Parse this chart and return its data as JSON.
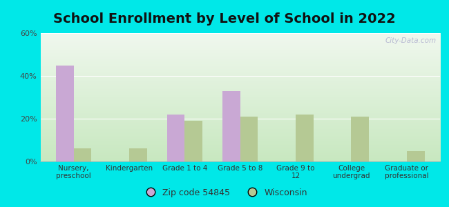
{
  "title": "School Enrollment by Level of School in 2022",
  "categories": [
    "Nursery,\npreschool",
    "Kindergarten",
    "Grade 1 to 4",
    "Grade 5 to 8",
    "Grade 9 to\n12",
    "College\nundergrad",
    "Graduate or\nprofessional"
  ],
  "zip_values": [
    45,
    0,
    22,
    33,
    0,
    0,
    0
  ],
  "wi_values": [
    6,
    6,
    19,
    21,
    22,
    21,
    5
  ],
  "zip_color": "#c9a8d4",
  "wi_color": "#b5c994",
  "background_outer": "#00e8e8",
  "background_inner_top": "#f0f8ee",
  "background_inner_bottom": "#c8e8c0",
  "ylim": [
    0,
    60
  ],
  "yticks": [
    0,
    20,
    40,
    60
  ],
  "ytick_labels": [
    "0%",
    "20%",
    "40%",
    "60%"
  ],
  "legend_zip_label": "Zip code 54845",
  "legend_wi_label": "Wisconsin",
  "title_fontsize": 14,
  "watermark": "City-Data.com"
}
